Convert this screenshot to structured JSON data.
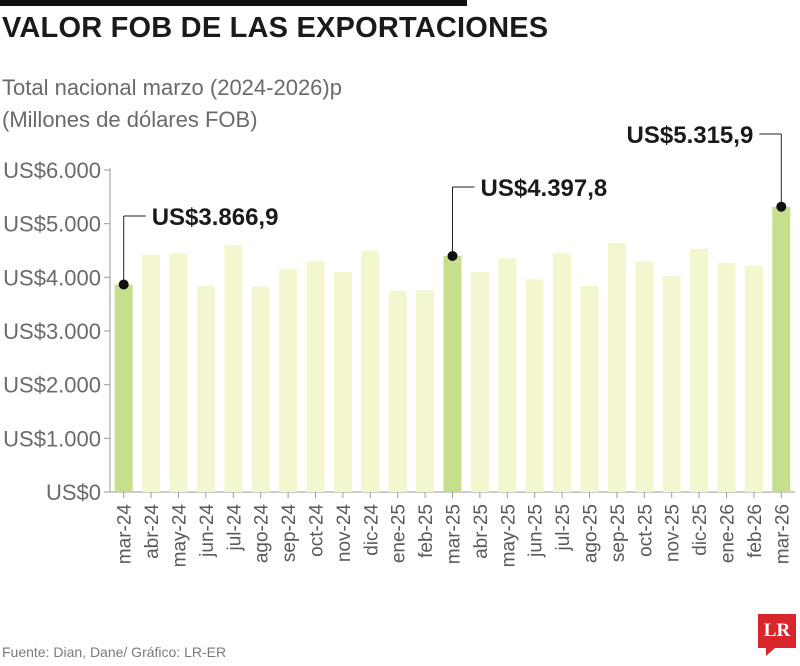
{
  "header": {
    "title": "VALOR FOB DE LAS EXPORTACIONES",
    "subtitle_line1": "Total nacional marzo (2024-2026)p",
    "subtitle_line2": "(Millones de dólares FOB)"
  },
  "footer": {
    "source": "Fuente: Dian, Dane/ Gráfico: LR-ER",
    "logo_text": "LR"
  },
  "colors": {
    "highlight_bar": "#c6df8c",
    "normal_bar": "#f3f6cf",
    "axis": "#9a9a9a",
    "dot": "#111111",
    "logo": "#d9262b"
  },
  "chart_data": {
    "type": "bar",
    "categories": [
      "mar-24",
      "abr-24",
      "may-24",
      "jun-24",
      "jul-24",
      "ago-24",
      "sep-24",
      "oct-24",
      "nov-24",
      "dic-24",
      "ene-25",
      "feb-25",
      "mar-25",
      "abr-25",
      "may-25",
      "jun-25",
      "jul-25",
      "ago-25",
      "sep-25",
      "oct-25",
      "nov-25",
      "dic-25",
      "ene-26",
      "feb-26",
      "mar-26"
    ],
    "values": [
      3866.9,
      4420,
      4450,
      3840,
      4600,
      3830,
      4150,
      4300,
      4100,
      4500,
      3750,
      3760,
      4397.8,
      4100,
      4350,
      3960,
      4450,
      3840,
      4640,
      4300,
      4020,
      4530,
      4270,
      4220,
      5315.9
    ],
    "highlighted": [
      "mar-24",
      "mar-25",
      "mar-26"
    ],
    "annotations": [
      {
        "category": "mar-24",
        "label": "US$3.866,9"
      },
      {
        "category": "mar-25",
        "label": "US$4.397,8"
      },
      {
        "category": "mar-26",
        "label": "US$5.315,9"
      }
    ],
    "y_ticks": [
      0,
      1000,
      2000,
      3000,
      4000,
      5000,
      6000
    ],
    "y_tick_labels": [
      "US$0",
      "US$1.000",
      "US$2.000",
      "US$3.000",
      "US$4.000",
      "US$5.000",
      "US$6.000"
    ],
    "ylim": [
      0,
      6000
    ],
    "grid": false
  }
}
